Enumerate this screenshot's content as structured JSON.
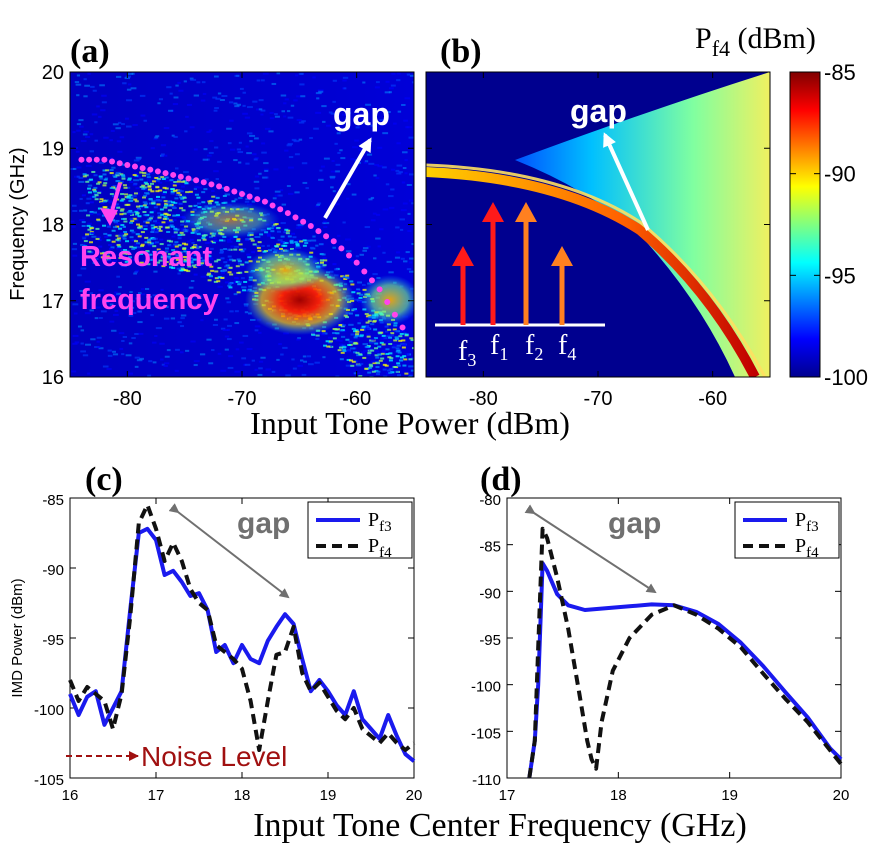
{
  "figure": {
    "panel_labels": [
      "(a)",
      "(b)",
      "(c)",
      "(d)"
    ],
    "colorbar": {
      "title_main": "P",
      "title_sub": "f4",
      "title_unit": " (dBm)",
      "ticks": [
        "-85",
        "-90",
        "-95",
        "-100"
      ],
      "range": [
        -100,
        -85
      ],
      "colors": [
        "#00008f",
        "#0000ff",
        "#0080ff",
        "#00ffff",
        "#80ff80",
        "#ffff00",
        "#ff8000",
        "#ff0000",
        "#800000"
      ]
    },
    "top_xlabel": "Input Tone Power (dBm)",
    "bottom_xlabel": "Input Tone Center Frequency (GHz)",
    "annotations": {
      "gap": "gap",
      "resonant_line1": "Resonant",
      "resonant_line2": "frequency",
      "noise_level": "Noise Level",
      "tones": [
        "f",
        "f",
        "f",
        "f"
      ],
      "tone_subs": [
        "3",
        "1",
        "2",
        "4"
      ]
    },
    "colors": {
      "resonant": "#ff44ee",
      "arrow_red": "#ff1a1a",
      "arrow_orange": "#ff8020",
      "noise": "#a01010",
      "gap_gray": "#707070",
      "pf3_line": "#1a1aee",
      "pf4_line": "#111111"
    }
  },
  "chart_data": [
    {
      "type": "heatmap",
      "panel": "(a)",
      "title": "",
      "xlabel": "Input Tone Power (dBm)",
      "ylabel": "Frequency (GHz)",
      "xlim": [
        -85,
        -55
      ],
      "ylim": [
        16,
        20
      ],
      "xticks": [
        "-80",
        "-70",
        "-60"
      ],
      "yticks": [
        "16",
        "17",
        "18",
        "19",
        "20"
      ],
      "colorbar_range": [
        -100,
        -85
      ],
      "resonant_frequency_points": {
        "x": [
          -84,
          -82,
          -80,
          -78,
          -76,
          -74,
          -72,
          -70,
          -68,
          -66,
          -64,
          -62,
          -60,
          -58,
          -56
        ],
        "y": [
          18.85,
          18.85,
          18.78,
          18.72,
          18.65,
          18.58,
          18.5,
          18.4,
          18.3,
          18.15,
          17.98,
          17.78,
          17.5,
          17.15,
          16.65
        ]
      }
    },
    {
      "type": "heatmap",
      "panel": "(b)",
      "title": "",
      "xlabel": "Input Tone Power (dBm)",
      "ylabel": "",
      "xlim": [
        -85,
        -55
      ],
      "ylim": [
        16,
        20
      ],
      "xticks": [
        "-80",
        "-70",
        "-60"
      ],
      "yticks": [],
      "colorbar_range": [
        -100,
        -85
      ]
    },
    {
      "type": "line",
      "panel": "(c)",
      "title": "",
      "xlabel": "",
      "ylabel": "IMD Power (dBm)",
      "xlim": [
        16,
        20
      ],
      "ylim": [
        -105,
        -85
      ],
      "xticks": [
        "16",
        "17",
        "18",
        "19",
        "20"
      ],
      "yticks": [
        "-85",
        "-90",
        "-95",
        "-100",
        "-105"
      ],
      "legend": "top-right",
      "series": [
        {
          "name": "Pf3",
          "label_main": "P",
          "label_sub": "f3",
          "x": [
            16.0,
            16.1,
            16.2,
            16.3,
            16.4,
            16.5,
            16.6,
            16.7,
            16.8,
            16.9,
            17.0,
            17.1,
            17.2,
            17.3,
            17.4,
            17.5,
            17.6,
            17.7,
            17.8,
            17.9,
            18.0,
            18.1,
            18.2,
            18.3,
            18.4,
            18.5,
            18.6,
            18.7,
            18.8,
            18.9,
            19.0,
            19.1,
            19.2,
            19.3,
            19.4,
            19.5,
            19.6,
            19.7,
            19.8,
            19.9,
            20.0
          ],
          "y": [
            -99,
            -100.5,
            -99.2,
            -98.8,
            -101.2,
            -100,
            -98.8,
            -93,
            -87.5,
            -87.2,
            -88,
            -90.5,
            -90.2,
            -91,
            -92,
            -91.8,
            -93,
            -96,
            -95.5,
            -96.8,
            -95.5,
            -96.5,
            -96.8,
            -95.2,
            -94.2,
            -93.3,
            -94,
            -96.5,
            -98.8,
            -98,
            -98.8,
            -99.8,
            -100.5,
            -98.8,
            -100.8,
            -101.5,
            -102.2,
            -100.5,
            -102,
            -103.3,
            -103.8
          ]
        },
        {
          "name": "Pf4",
          "label_main": "P",
          "label_sub": "f4",
          "x": [
            16.0,
            16.1,
            16.2,
            16.3,
            16.4,
            16.5,
            16.6,
            16.7,
            16.8,
            16.9,
            17.0,
            17.1,
            17.2,
            17.3,
            17.4,
            17.5,
            17.6,
            17.7,
            17.8,
            17.9,
            18.0,
            18.1,
            18.2,
            18.3,
            18.4,
            18.5,
            18.6,
            18.7,
            18.8,
            18.9,
            19.0,
            19.1,
            19.2,
            19.3,
            19.4,
            19.5,
            19.6,
            19.7,
            19.8,
            19.9,
            20.0
          ],
          "y": [
            -98,
            -99.5,
            -98.5,
            -99,
            -99.5,
            -101.5,
            -99,
            -93.5,
            -86.8,
            -85.5,
            -87.2,
            -89.5,
            -88.2,
            -89.5,
            -91.5,
            -92.5,
            -93,
            -95.5,
            -96,
            -96.5,
            -97.2,
            -99.5,
            -103,
            -99.5,
            -96.2,
            -96,
            -94.2,
            -97.5,
            -98.8,
            -98.2,
            -99.2,
            -100.2,
            -100.8,
            -100,
            -101.5,
            -102,
            -102.5,
            -101.8,
            -102.5,
            -103,
            -102.5
          ]
        }
      ]
    },
    {
      "type": "line",
      "panel": "(d)",
      "title": "",
      "xlabel": "",
      "ylabel": "",
      "xlim": [
        17,
        20
      ],
      "ylim": [
        -110,
        -80
      ],
      "xticks": [
        "17",
        "18",
        "19",
        "20"
      ],
      "yticks": [
        "-80",
        "-85",
        "-90",
        "-95",
        "-100",
        "-105",
        "-110"
      ],
      "legend": "top-right",
      "series": [
        {
          "name": "Pf3",
          "label_main": "P",
          "label_sub": "f3",
          "x": [
            17.2,
            17.25,
            17.28,
            17.32,
            17.36,
            17.45,
            17.55,
            17.7,
            17.9,
            18.1,
            18.3,
            18.5,
            18.7,
            18.9,
            19.1,
            19.3,
            19.5,
            19.7,
            19.9,
            20.0
          ],
          "y": [
            -110,
            -106,
            -100,
            -87,
            -87.8,
            -90.3,
            -91.5,
            -92,
            -91.8,
            -91.6,
            -91.4,
            -91.5,
            -92.2,
            -93.5,
            -95.5,
            -98,
            -100.8,
            -103.5,
            -106.8,
            -108
          ]
        },
        {
          "name": "Pf4",
          "label_main": "P",
          "label_sub": "f4",
          "x": [
            17.2,
            17.25,
            17.28,
            17.32,
            17.36,
            17.45,
            17.55,
            17.65,
            17.72,
            17.76,
            17.8,
            17.85,
            17.95,
            18.1,
            18.3,
            18.5,
            18.7,
            18.9,
            19.1,
            19.3,
            19.5,
            19.7,
            19.9,
            20.0
          ],
          "y": [
            -110,
            -106,
            -96,
            -83.3,
            -84.3,
            -88.5,
            -94,
            -101,
            -106,
            -108,
            -109,
            -104,
            -98.5,
            -95,
            -92.5,
            -91.5,
            -92.5,
            -94,
            -96,
            -98.8,
            -101.5,
            -104,
            -107,
            -108.5
          ]
        }
      ]
    }
  ]
}
